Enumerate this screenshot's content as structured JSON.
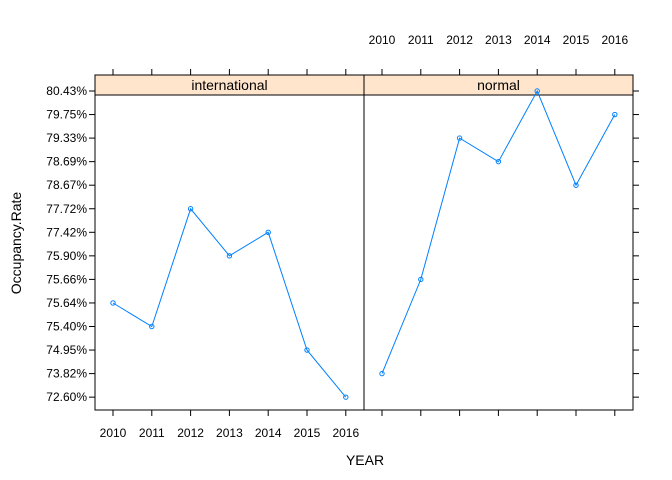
{
  "chart_data": {
    "type": "line",
    "xlabel": "YEAR",
    "ylabel": "Occupancy.Rate",
    "x": [
      "2010",
      "2011",
      "2012",
      "2013",
      "2014",
      "2015",
      "2016"
    ],
    "y_categories": [
      "72.60%",
      "73.82%",
      "74.95%",
      "75.40%",
      "75.64%",
      "75.66%",
      "75.90%",
      "77.42%",
      "77.72%",
      "78.67%",
      "78.69%",
      "79.33%",
      "79.75%",
      "80.43%"
    ],
    "panels": [
      {
        "name": "international",
        "values": [
          "75.64%",
          "75.40%",
          "77.72%",
          "75.90%",
          "77.42%",
          "74.95%",
          "72.60%"
        ]
      },
      {
        "name": "normal",
        "values": [
          "73.82%",
          "75.66%",
          "79.33%",
          "78.69%",
          "80.43%",
          "78.67%",
          "79.75%"
        ]
      }
    ],
    "series_color": "#0080ff",
    "strip_color": "#ffe5cc",
    "grid": false,
    "legend": "none"
  }
}
